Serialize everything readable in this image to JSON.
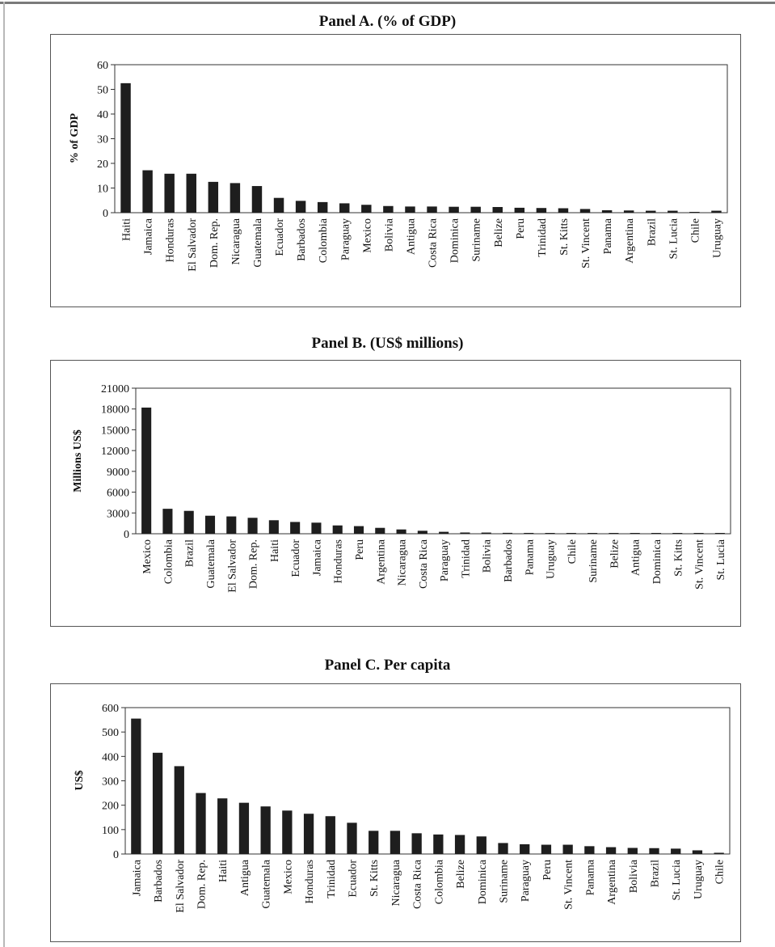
{
  "chart_data": [
    {
      "type": "bar",
      "title": "Panel A. (% of GDP)",
      "ylabel": "% of GDP",
      "xlabel": "",
      "ylim": [
        0,
        60
      ],
      "yticks": [
        0,
        10,
        20,
        30,
        40,
        50,
        60
      ],
      "categories": [
        "Haiti",
        "Jamaica",
        "Honduras",
        "El Salvador",
        "Dom. Rep.",
        "Nicaragua",
        "Guatemala",
        "Ecuador",
        "Barbados",
        "Colombia",
        "Paraguay",
        "Mexico",
        "Bolivia",
        "Antigua",
        "Costa Rica",
        "Dominica",
        "Suriname",
        "Belize",
        "Peru",
        "Trinidad",
        "St. Kitts",
        "St. Vincent",
        "Panama",
        "Argentina",
        "Brazil",
        "St. Lucia",
        "Chile",
        "Uruguay"
      ],
      "values": [
        52.5,
        17.2,
        15.8,
        15.8,
        12.5,
        12.0,
        10.8,
        6.0,
        4.8,
        4.3,
        3.8,
        3.2,
        2.7,
        2.5,
        2.5,
        2.4,
        2.4,
        2.3,
        2.0,
        1.9,
        1.8,
        1.5,
        1.0,
        0.9,
        0.8,
        0.8,
        0.3,
        0.8
      ],
      "grid": false,
      "legend": "none"
    },
    {
      "type": "bar",
      "title": "Panel B. (US$ millions)",
      "ylabel": "Millions US$",
      "xlabel": "",
      "ylim": [
        0,
        21000
      ],
      "yticks": [
        0,
        3000,
        6000,
        9000,
        12000,
        15000,
        18000,
        21000
      ],
      "categories": [
        "Mexico",
        "Colombia",
        "Brazil",
        "Guatemala",
        "El Salvador",
        "Dom. Rep.",
        "Haiti",
        "Ecuador",
        "Jamaica",
        "Honduras",
        "Peru",
        "Argentina",
        "Nicaragua",
        "Costa Rica",
        "Paraguay",
        "Trinidad",
        "Bolivia",
        "Barbados",
        "Panama",
        "Uruguay",
        "Chile",
        "Suriname",
        "Belize",
        "Antigua",
        "Dominica",
        "St. Kitts",
        "St. Vincent",
        "St. Lucia"
      ],
      "values": [
        18200,
        3600,
        3300,
        2600,
        2500,
        2300,
        1950,
        1700,
        1600,
        1200,
        1100,
        850,
        620,
        430,
        280,
        180,
        170,
        130,
        120,
        80,
        60,
        40,
        30,
        25,
        20,
        15,
        15,
        10
      ],
      "grid": false,
      "legend": "none"
    },
    {
      "type": "bar",
      "title": "Panel C. Per capita",
      "ylabel": "US$",
      "xlabel": "",
      "ylim": [
        0,
        600
      ],
      "yticks": [
        0,
        100,
        200,
        300,
        400,
        500,
        600
      ],
      "categories": [
        "Jamaica",
        "Barbados",
        "El Salvador",
        "Dom. Rep.",
        "Haiti",
        "Antigua",
        "Guatemala",
        "Mexico",
        "Honduras",
        "Trinidad",
        "Ecuador",
        "St. Kitts",
        "Nicaragua",
        "Costa Rica",
        "Colombia",
        "Belize",
        "Dominica",
        "Suriname",
        "Paraguay",
        "Peru",
        "St. Vincent",
        "Panama",
        "Argentina",
        "Bolivia",
        "Brazil",
        "St. Lucia",
        "Uruguay",
        "Chile"
      ],
      "values": [
        555,
        415,
        360,
        250,
        228,
        210,
        195,
        178,
        165,
        155,
        128,
        95,
        95,
        85,
        80,
        78,
        72,
        45,
        40,
        38,
        38,
        32,
        28,
        25,
        24,
        22,
        15,
        5
      ],
      "grid": false,
      "legend": "none"
    }
  ]
}
